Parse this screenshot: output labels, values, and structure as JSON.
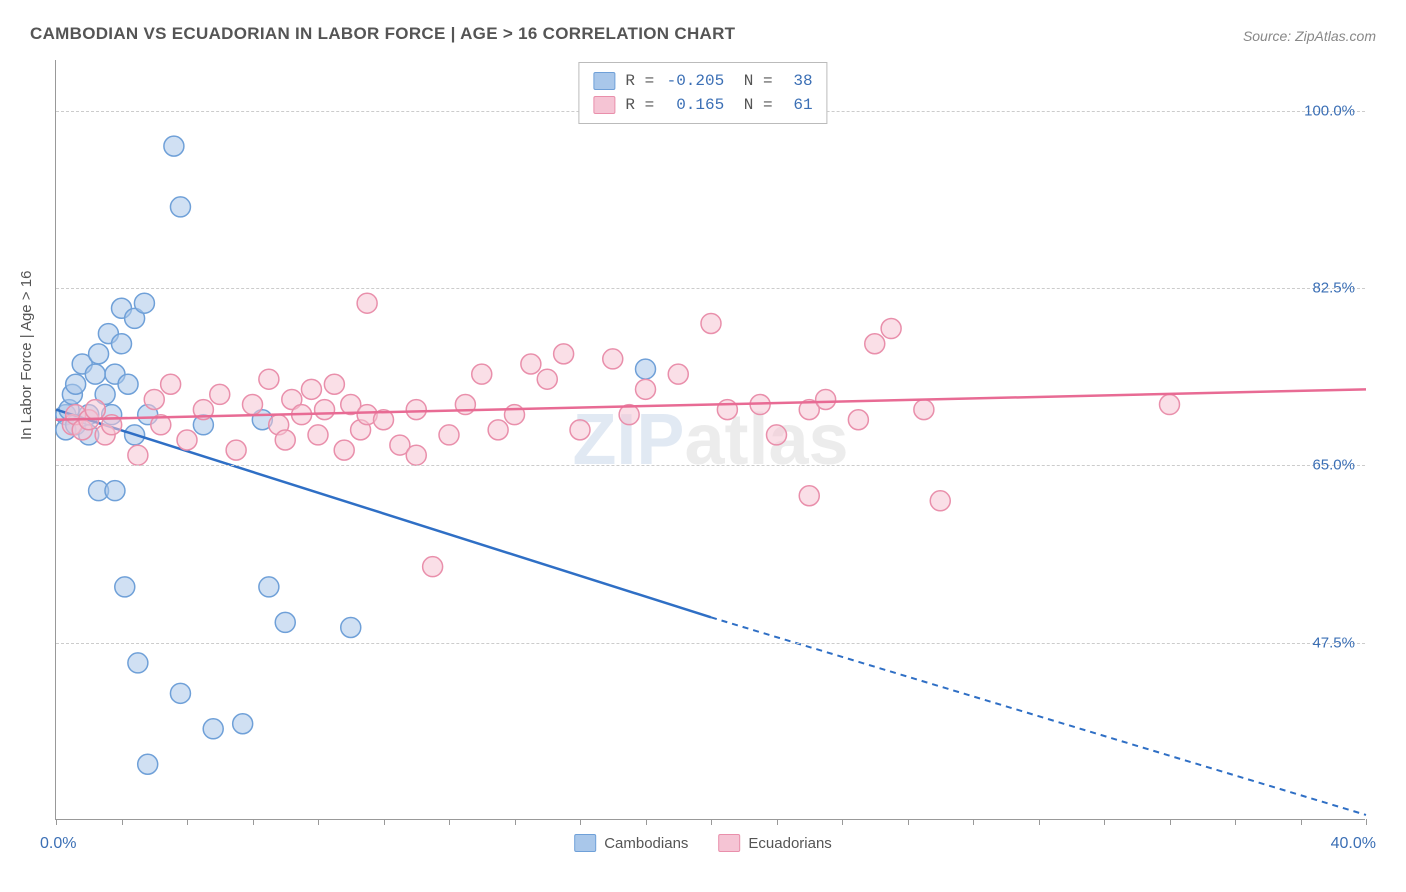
{
  "title": "CAMBODIAN VS ECUADORIAN IN LABOR FORCE | AGE > 16 CORRELATION CHART",
  "source": "Source: ZipAtlas.com",
  "yaxis_title": "In Labor Force | Age > 16",
  "watermark_z": "ZIP",
  "watermark_rest": "atlas",
  "chart": {
    "type": "scatter",
    "xlim": [
      0,
      40
    ],
    "ylim": [
      30,
      105
    ],
    "xticks_minor": [
      0,
      2,
      4,
      6,
      8,
      10,
      12,
      14,
      16,
      18,
      20,
      22,
      24,
      26,
      28,
      30,
      32,
      34,
      36,
      38,
      40
    ],
    "yticks": [
      47.5,
      65.0,
      82.5,
      100.0
    ],
    "ytick_labels": [
      "47.5%",
      "65.0%",
      "82.5%",
      "100.0%"
    ],
    "xaxis_left_label": "0.0%",
    "xaxis_right_label": "40.0%",
    "background_color": "#ffffff",
    "grid_color": "#cccccc",
    "series": [
      {
        "name": "Cambodians",
        "label": "Cambodians",
        "color_fill": "#a9c7ea",
        "color_stroke": "#6fa0d8",
        "trend_color": "#2f6fc5",
        "marker_radius": 10,
        "marker_opacity": 0.55,
        "R": "-0.205",
        "N": "38",
        "trend": {
          "x1": 0,
          "y1": 70.5,
          "x2_solid": 20,
          "y2_solid": 50.0,
          "x2_dash": 40,
          "y2_dash": 30.5
        },
        "points": [
          [
            0.3,
            70
          ],
          [
            0.3,
            68.5
          ],
          [
            0.4,
            70.5
          ],
          [
            0.5,
            72
          ],
          [
            0.6,
            69
          ],
          [
            0.6,
            73
          ],
          [
            0.8,
            75
          ],
          [
            1.0,
            70
          ],
          [
            1.0,
            68
          ],
          [
            1.2,
            74
          ],
          [
            1.3,
            76
          ],
          [
            1.5,
            72
          ],
          [
            1.6,
            78
          ],
          [
            1.7,
            70
          ],
          [
            1.8,
            74
          ],
          [
            2.0,
            80.5
          ],
          [
            2.2,
            73
          ],
          [
            2.0,
            77
          ],
          [
            2.4,
            79.5
          ],
          [
            2.8,
            70
          ],
          [
            2.7,
            81
          ],
          [
            1.3,
            62.5
          ],
          [
            1.8,
            62.5
          ],
          [
            2.1,
            53
          ],
          [
            2.5,
            45.5
          ],
          [
            3.8,
            42.5
          ],
          [
            4.8,
            39
          ],
          [
            5.7,
            39.5
          ],
          [
            2.8,
            35.5
          ],
          [
            3.6,
            96.5
          ],
          [
            3.8,
            90.5
          ],
          [
            4.5,
            69
          ],
          [
            7.0,
            49.5
          ],
          [
            6.5,
            53
          ],
          [
            9.0,
            49
          ],
          [
            6.3,
            69.5
          ],
          [
            18.0,
            74.5
          ],
          [
            2.4,
            68
          ]
        ]
      },
      {
        "name": "Ecuadorians",
        "label": "Ecuadorians",
        "color_fill": "#f5c4d4",
        "color_stroke": "#e98fab",
        "trend_color": "#e86b94",
        "marker_radius": 10,
        "marker_opacity": 0.55,
        "R": "0.165",
        "N": "61",
        "trend": {
          "x1": 0,
          "y1": 69.5,
          "x2_solid": 40,
          "y2_solid": 72.5,
          "x2_dash": 40,
          "y2_dash": 72.5
        },
        "points": [
          [
            0.5,
            69
          ],
          [
            0.6,
            70
          ],
          [
            0.8,
            68.5
          ],
          [
            1.0,
            69.5
          ],
          [
            1.2,
            70.5
          ],
          [
            1.5,
            68
          ],
          [
            1.7,
            69
          ],
          [
            2.5,
            66
          ],
          [
            3.0,
            71.5
          ],
          [
            3.2,
            69
          ],
          [
            3.5,
            73
          ],
          [
            4.0,
            67.5
          ],
          [
            4.5,
            70.5
          ],
          [
            5.0,
            72
          ],
          [
            5.5,
            66.5
          ],
          [
            6.0,
            71
          ],
          [
            6.5,
            73.5
          ],
          [
            6.8,
            69
          ],
          [
            7.0,
            67.5
          ],
          [
            7.2,
            71.5
          ],
          [
            7.5,
            70
          ],
          [
            7.8,
            72.5
          ],
          [
            8.0,
            68
          ],
          [
            8.2,
            70.5
          ],
          [
            8.5,
            73
          ],
          [
            8.8,
            66.5
          ],
          [
            9.0,
            71
          ],
          [
            9.3,
            68.5
          ],
          [
            9.5,
            70
          ],
          [
            9.5,
            81
          ],
          [
            10,
            69.5
          ],
          [
            10.5,
            67
          ],
          [
            11,
            66
          ],
          [
            11,
            70.5
          ],
          [
            12,
            68
          ],
          [
            12.5,
            71
          ],
          [
            13,
            74
          ],
          [
            13.5,
            68.5
          ],
          [
            14,
            70
          ],
          [
            14.5,
            75
          ],
          [
            15,
            73.5
          ],
          [
            15.5,
            76
          ],
          [
            16,
            68.5
          ],
          [
            17,
            75.5
          ],
          [
            17.5,
            70
          ],
          [
            18,
            72.5
          ],
          [
            19,
            74
          ],
          [
            20,
            79
          ],
          [
            20.5,
            70.5
          ],
          [
            21.5,
            71
          ],
          [
            22,
            68
          ],
          [
            23,
            70.5
          ],
          [
            23.5,
            71.5
          ],
          [
            24.5,
            69.5
          ],
          [
            25,
            77
          ],
          [
            25.5,
            78.5
          ],
          [
            23,
            62
          ],
          [
            27,
            61.5
          ],
          [
            11.5,
            55
          ],
          [
            26.5,
            70.5
          ],
          [
            34,
            71
          ]
        ]
      }
    ]
  },
  "legend_bottom": [
    {
      "label": "Cambodians",
      "fill": "#a9c7ea",
      "stroke": "#6fa0d8"
    },
    {
      "label": "Ecuadorians",
      "fill": "#f5c4d4",
      "stroke": "#e98fab"
    }
  ]
}
